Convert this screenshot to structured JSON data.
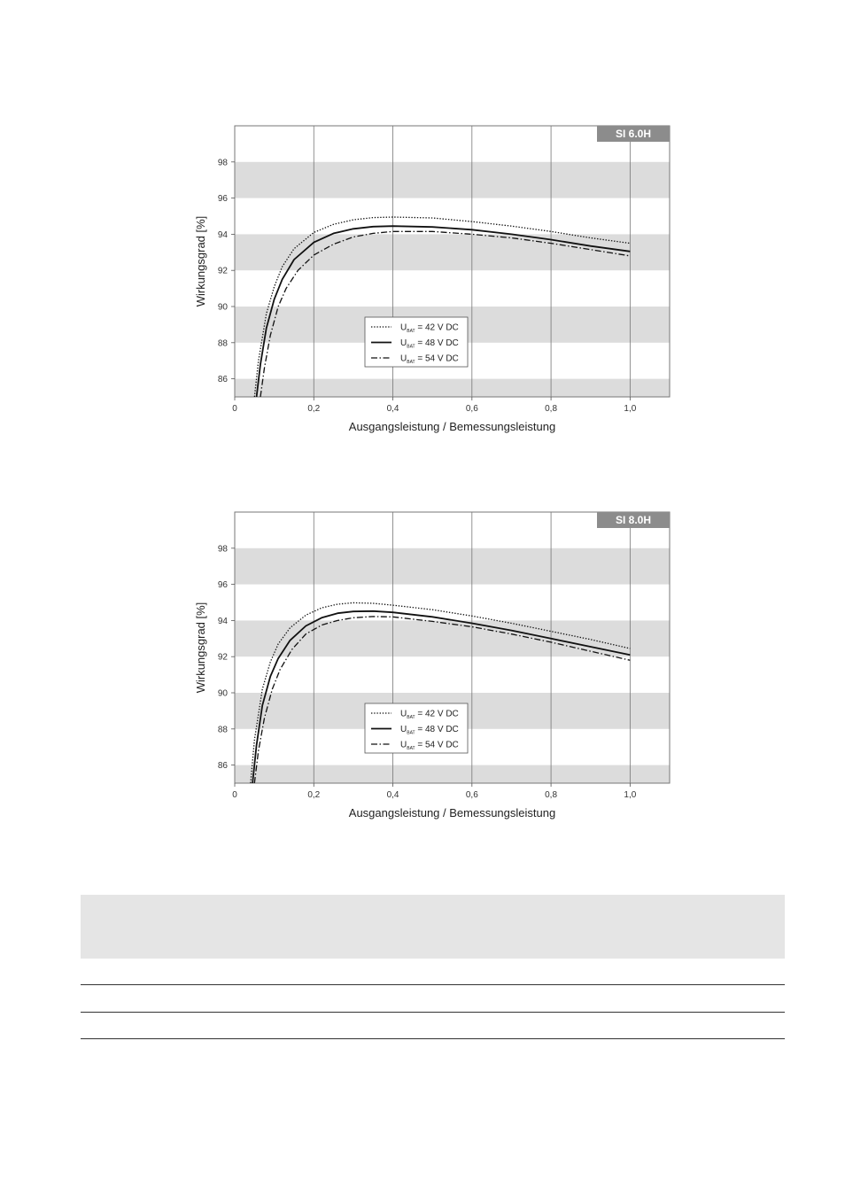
{
  "chart_data": [
    {
      "type": "line",
      "badge": "SI 6.0H",
      "xlabel": "Ausgangsleistung / Bemessungsleistung",
      "ylabel": "Wirkungsgrad [%]",
      "xlim": [
        0,
        1.1
      ],
      "ylim": [
        85,
        100
      ],
      "x_ticks": [
        "0",
        "0,2",
        "0,4",
        "0,6",
        "0,8",
        "1,0"
      ],
      "y_ticks": [
        "86",
        "88",
        "90",
        "92",
        "94",
        "96",
        "98"
      ],
      "grid": "vertical lines, horizontal gray bands",
      "legend_position": "bottom-center",
      "series": [
        {
          "name": "U_BAT = 42 V DC",
          "label_main": "U",
          "label_sub": "BAT",
          "label_rest": " = 42 V DC",
          "style": "dotted",
          "x": [
            0.05,
            0.06,
            0.08,
            0.1,
            0.12,
            0.15,
            0.2,
            0.25,
            0.3,
            0.35,
            0.4,
            0.5,
            0.6,
            0.7,
            0.8,
            0.9,
            1.0
          ],
          "y": [
            85.0,
            87.0,
            89.6,
            91.1,
            92.2,
            93.2,
            94.1,
            94.55,
            94.8,
            94.92,
            94.95,
            94.9,
            94.7,
            94.45,
            94.15,
            93.8,
            93.5
          ]
        },
        {
          "name": "U_BAT = 48 V DC",
          "label_main": "U",
          "label_sub": "BAT",
          "label_rest": " = 48 V DC",
          "style": "solid",
          "x": [
            0.055,
            0.065,
            0.08,
            0.1,
            0.12,
            0.15,
            0.2,
            0.25,
            0.3,
            0.35,
            0.4,
            0.5,
            0.6,
            0.7,
            0.8,
            0.9,
            1.0
          ],
          "y": [
            85.0,
            86.8,
            88.8,
            90.4,
            91.5,
            92.6,
            93.55,
            94.05,
            94.3,
            94.42,
            94.45,
            94.4,
            94.25,
            94.0,
            93.7,
            93.35,
            93.05
          ]
        },
        {
          "name": "U_BAT = 54 V DC",
          "label_main": "U",
          "label_sub": "BAT",
          "label_rest": " = 54 V DC",
          "style": "dashdot",
          "x": [
            0.065,
            0.075,
            0.09,
            0.11,
            0.13,
            0.16,
            0.2,
            0.25,
            0.3,
            0.35,
            0.4,
            0.5,
            0.6,
            0.7,
            0.8,
            0.9,
            1.0
          ],
          "y": [
            85.0,
            86.6,
            88.4,
            90.0,
            91.0,
            92.0,
            92.85,
            93.45,
            93.85,
            94.05,
            94.15,
            94.15,
            94.0,
            93.8,
            93.5,
            93.15,
            92.8
          ]
        }
      ]
    },
    {
      "type": "line",
      "badge": "SI 8.0H",
      "xlabel": "Ausgangsleistung / Bemessungsleistung",
      "ylabel": "Wirkungsgrad [%]",
      "xlim": [
        0,
        1.1
      ],
      "ylim": [
        85,
        100
      ],
      "x_ticks": [
        "0",
        "0,2",
        "0,4",
        "0,6",
        "0,8",
        "1,0"
      ],
      "y_ticks": [
        "86",
        "88",
        "90",
        "92",
        "94",
        "96",
        "98"
      ],
      "grid": "vertical lines, horizontal gray bands",
      "legend_position": "bottom-center",
      "series": [
        {
          "name": "U_BAT = 42 V DC",
          "label_main": "U",
          "label_sub": "BAT",
          "label_rest": " = 42 V DC",
          "style": "dotted",
          "x": [
            0.04,
            0.05,
            0.07,
            0.09,
            0.11,
            0.14,
            0.18,
            0.22,
            0.26,
            0.3,
            0.35,
            0.4,
            0.5,
            0.6,
            0.7,
            0.8,
            0.9,
            1.0
          ],
          "y": [
            85.0,
            87.4,
            90.2,
            91.7,
            92.7,
            93.6,
            94.3,
            94.7,
            94.9,
            94.98,
            94.95,
            94.85,
            94.6,
            94.25,
            93.85,
            93.4,
            92.95,
            92.45
          ]
        },
        {
          "name": "U_BAT = 48 V DC",
          "label_main": "U",
          "label_sub": "BAT",
          "label_rest": " = 48 V DC",
          "style": "solid",
          "x": [
            0.045,
            0.055,
            0.07,
            0.09,
            0.11,
            0.14,
            0.18,
            0.22,
            0.26,
            0.3,
            0.35,
            0.4,
            0.5,
            0.6,
            0.7,
            0.8,
            0.9,
            1.0
          ],
          "y": [
            85.0,
            87.1,
            89.3,
            90.9,
            91.9,
            92.9,
            93.7,
            94.15,
            94.4,
            94.5,
            94.52,
            94.45,
            94.2,
            93.85,
            93.45,
            93.0,
            92.55,
            92.1
          ]
        },
        {
          "name": "U_BAT = 54 V DC",
          "label_main": "U",
          "label_sub": "BAT",
          "label_rest": " = 54 V DC",
          "style": "dashdot",
          "x": [
            0.05,
            0.06,
            0.075,
            0.095,
            0.115,
            0.145,
            0.18,
            0.22,
            0.26,
            0.3,
            0.35,
            0.4,
            0.5,
            0.6,
            0.7,
            0.8,
            0.9,
            1.0
          ],
          "y": [
            85.0,
            86.8,
            88.6,
            90.2,
            91.3,
            92.4,
            93.25,
            93.75,
            94.0,
            94.15,
            94.22,
            94.2,
            93.95,
            93.65,
            93.25,
            92.8,
            92.3,
            91.8
          ]
        }
      ]
    }
  ]
}
